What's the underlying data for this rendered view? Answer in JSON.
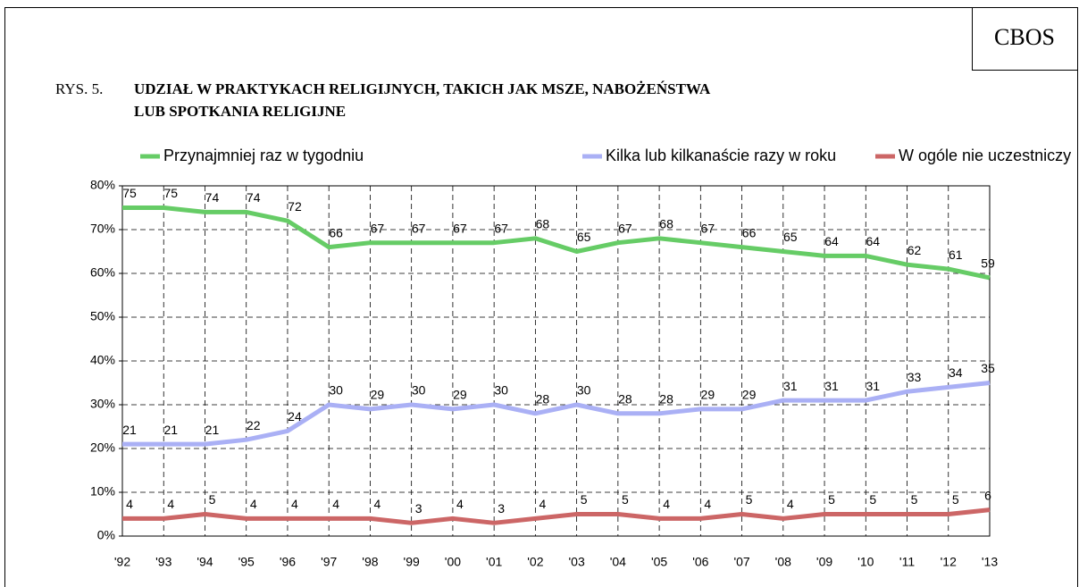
{
  "source": "CBOS",
  "chart_data": {
    "type": "line",
    "figure_label": "RYS. 5.",
    "title": [
      "UDZIAŁ W PRAKTYKACH RELIGIJNYCH, TAKICH JAK MSZE, NABOŻEŃSTWA",
      "LUB SPOTKANIA RELIGIJNE"
    ],
    "categories": [
      "'92",
      "'93",
      "'94",
      "'95",
      "'96",
      "'97",
      "'98",
      "'99",
      "'00",
      "'01",
      "'02",
      "'03",
      "'04",
      "'05",
      "'06",
      "'07",
      "'08",
      "'09",
      "'10",
      "'11",
      "'12",
      "'13"
    ],
    "series": [
      {
        "name": "Przynajmniej raz w tygodniu",
        "color": "#66cc66",
        "values": [
          75,
          75,
          74,
          74,
          72,
          66,
          67,
          67,
          67,
          67,
          68,
          65,
          67,
          68,
          67,
          66,
          65,
          64,
          64,
          62,
          61,
          59
        ]
      },
      {
        "name": "Kilka lub kilkanaście razy w roku",
        "color": "#aab0f5",
        "values": [
          21,
          21,
          21,
          22,
          24,
          30,
          29,
          30,
          29,
          30,
          28,
          30,
          28,
          28,
          29,
          29,
          31,
          31,
          31,
          33,
          34,
          35
        ]
      },
      {
        "name": "W ogóle nie uczestniczy",
        "color": "#cc6666",
        "values": [
          4,
          4,
          5,
          4,
          4,
          4,
          4,
          3,
          4,
          3,
          4,
          5,
          5,
          4,
          4,
          5,
          4,
          5,
          5,
          5,
          5,
          6
        ]
      }
    ],
    "ylim": [
      0,
      80
    ],
    "yticks": [
      {
        "value": 0,
        "label": "0%"
      },
      {
        "value": 10,
        "label": "10%"
      },
      {
        "value": 20,
        "label": "20%"
      },
      {
        "value": 30,
        "label": "30%"
      },
      {
        "value": 40,
        "label": "40%"
      },
      {
        "value": 50,
        "label": "50%"
      },
      {
        "value": 60,
        "label": "60%"
      },
      {
        "value": 70,
        "label": "70%"
      },
      {
        "value": 80,
        "label": "80%"
      }
    ],
    "grid": true,
    "legend": "top"
  }
}
